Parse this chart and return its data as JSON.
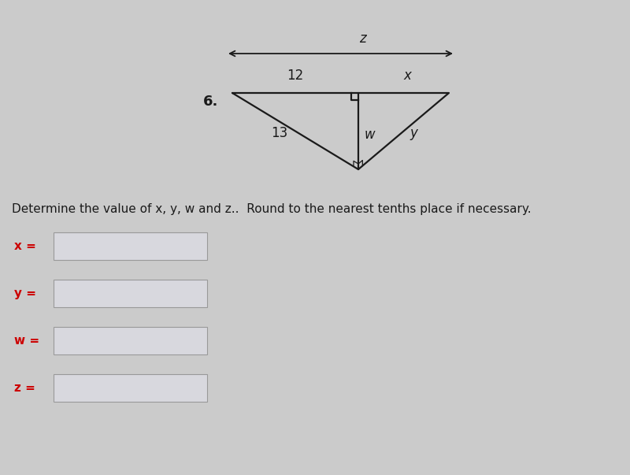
{
  "bg_color": "#cbcbcb",
  "problem_number": "6.",
  "label_12": "12",
  "label_x": "x",
  "label_13": "13",
  "label_w": "w",
  "label_y": "y",
  "label_z": "z",
  "desc_text": "Determine the value of x, y, w and z..  Round to the nearest tenths place if necessary.",
  "input_labels": [
    "x =",
    "y =",
    "w =",
    "z ="
  ],
  "input_label_color": "#cc0000",
  "text_color": "#1a1a1a",
  "box_fill_color": "#d8d8de",
  "box_edge_color": "#999999",
  "line_color": "#1a1a1a"
}
